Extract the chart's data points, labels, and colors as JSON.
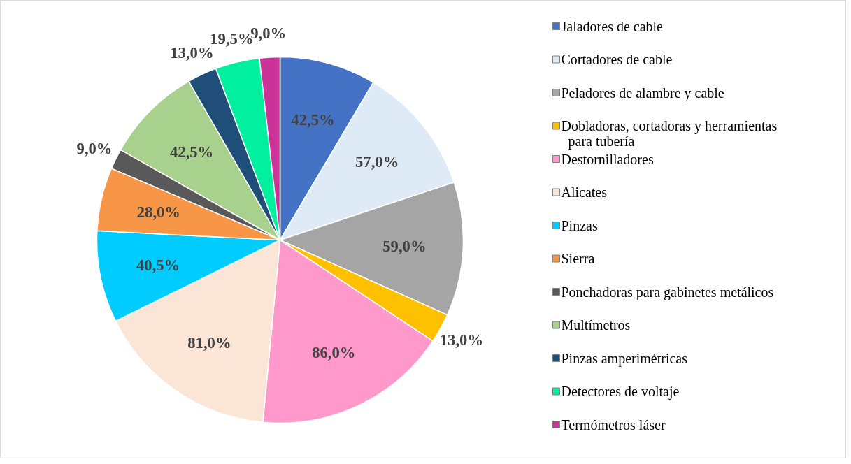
{
  "chart_data": {
    "type": "pie",
    "categories": [
      "Jaladores de cable",
      "Cortadores de cable",
      "Peladores de alambre y cable",
      "Dobladoras, cortadoras y herramientas para tubería",
      "Destornilladores",
      "Alicates",
      "Pinzas",
      "Sierra",
      "Ponchadoras para gabinetes metálicos",
      "Multímetros",
      "Pinzas amperimétricas",
      "Detectores de voltaje",
      "Termómetros láser"
    ],
    "values": [
      42.5,
      57.0,
      59.0,
      13.0,
      86.0,
      81.0,
      40.5,
      28.0,
      9.0,
      42.5,
      13.0,
      19.5,
      9.0
    ],
    "value_labels": [
      "42,5%",
      "57,0%",
      "59,0%",
      "13,0%",
      "86,0%",
      "81,0%",
      "40,5%",
      "28,0%",
      "9,0%",
      "42,5%",
      "13,0%",
      "19,5%",
      "9,0%"
    ],
    "colors": [
      "#4472c4",
      "#deebf7",
      "#a5a5a5",
      "#ffc000",
      "#ff99cc",
      "#fbe5d6",
      "#00ccff",
      "#f79646",
      "#595959",
      "#a9d18e",
      "#1f4e79",
      "#00f0a0",
      "#cc3399"
    ],
    "legend": "right"
  }
}
